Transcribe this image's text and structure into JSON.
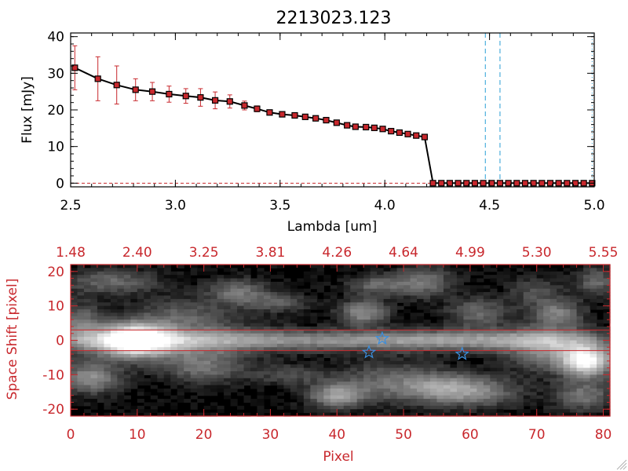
{
  "chart_data": [
    {
      "type": "line",
      "title": "2213023.123",
      "xlabel": "Lambda [um]",
      "ylabel": "Flux [mJy]",
      "xlim": [
        2.5,
        5.0
      ],
      "ylim": [
        -1,
        41
      ],
      "x_ticks": [
        "2.5",
        "3.0",
        "3.5",
        "4.0",
        "4.5",
        "5.0"
      ],
      "y_ticks": [
        "0",
        "10",
        "20",
        "30",
        "40"
      ],
      "line_color": "#000000",
      "marker_color": "#c8282d",
      "errorbar_color": "#c8282d",
      "dashed_lines_color": "#2a9fd6",
      "vertical_dashed_lines_x": [
        4.48,
        4.55
      ],
      "vertical_dotted_line_x": 4.99,
      "horizontal_dashed_line_y": 0,
      "x": [
        2.52,
        2.63,
        2.72,
        2.81,
        2.89,
        2.97,
        3.05,
        3.12,
        3.19,
        3.26,
        3.33,
        3.39,
        3.45,
        3.51,
        3.57,
        3.62,
        3.67,
        3.72,
        3.77,
        3.82,
        3.86,
        3.91,
        3.95,
        3.99,
        4.03,
        4.07,
        4.11,
        4.15,
        4.19,
        4.23,
        4.27,
        4.31,
        4.35,
        4.39,
        4.43,
        4.47,
        4.51,
        4.55,
        4.59,
        4.63,
        4.67,
        4.71,
        4.75,
        4.79,
        4.83,
        4.87,
        4.91,
        4.95,
        4.99
      ],
      "y": [
        31.5,
        28.5,
        26.8,
        25.5,
        25.0,
        24.3,
        23.8,
        23.4,
        22.6,
        22.3,
        21.2,
        20.3,
        19.3,
        18.8,
        18.5,
        18.1,
        17.7,
        17.2,
        16.5,
        15.8,
        15.4,
        15.3,
        15.1,
        14.8,
        14.2,
        13.8,
        13.4,
        13.0,
        12.6,
        0,
        0,
        0,
        0,
        0,
        0,
        0,
        0,
        0,
        0,
        0,
        0,
        0,
        0,
        0,
        0,
        0,
        0,
        0,
        0
      ],
      "yerr": [
        6.0,
        6.0,
        5.2,
        3.0,
        2.5,
        2.2,
        2.0,
        2.4,
        2.3,
        1.8,
        1.2,
        0.8,
        0.6,
        0.5,
        0.5,
        0.5,
        0.5,
        0.5,
        0.5,
        0.5,
        0.5,
        0.5,
        0.5,
        0.5,
        0.5,
        0.5,
        0.5,
        0.5,
        0.5,
        0.2,
        0.2,
        0.2,
        0.2,
        0.2,
        0.2,
        0.2,
        0.2,
        0.2,
        0.2,
        0.2,
        0.2,
        0.2,
        0.2,
        0.2,
        0.2,
        0.2,
        0.2,
        0.2,
        0.2
      ]
    },
    {
      "type": "heatmap",
      "xlabel": "Pixel",
      "ylabel": "Space Shift [pixel]",
      "xlim": [
        0,
        81
      ],
      "ylim": [
        -22,
        22
      ],
      "x_ticks": [
        "0",
        "10",
        "20",
        "30",
        "40",
        "50",
        "60",
        "70",
        "80"
      ],
      "y_ticks": [
        "-20",
        "-10",
        "0",
        "10",
        "20"
      ],
      "top_axis_ticks": [
        "1.48",
        "2.40",
        "3.25",
        "3.81",
        "4.26",
        "4.64",
        "4.99",
        "5.30",
        "5.55"
      ],
      "axis_color": "#c8282d",
      "horizontal_lines_y": [
        3,
        -3
      ],
      "star_markers": [
        {
          "x": 44.8,
          "y": -3.5
        },
        {
          "x": 46.8,
          "y": 0.5
        },
        {
          "x": 58.8,
          "y": -4.0
        }
      ],
      "star_color": "#3a8fe0",
      "blobs": [
        {
          "x": 9.5,
          "y": 0,
          "sx": 3.5,
          "sy": 3.0,
          "a": 1.0
        },
        {
          "x": 14,
          "y": 0,
          "sx": 9,
          "sy": 4.5,
          "a": 0.35
        },
        {
          "x": 30,
          "y": 0,
          "sx": 30,
          "sy": 2.0,
          "a": 0.42
        },
        {
          "x": 60,
          "y": 0,
          "sx": 12,
          "sy": 2.0,
          "a": 0.28
        },
        {
          "x": 77.5,
          "y": -6,
          "sx": 2.5,
          "sy": 3.0,
          "a": 0.95
        },
        {
          "x": 72,
          "y": -2,
          "sx": 4.5,
          "sy": 4.5,
          "a": 0.45
        },
        {
          "x": 3,
          "y": -11,
          "sx": 3,
          "sy": 3,
          "a": 0.45
        },
        {
          "x": 1.5,
          "y": 5,
          "sx": 2,
          "sy": 4,
          "a": 0.3
        },
        {
          "x": 6,
          "y": 17,
          "sx": 5,
          "sy": 2.5,
          "a": 0.3
        },
        {
          "x": 25,
          "y": 14,
          "sx": 3,
          "sy": 2.5,
          "a": 0.35
        },
        {
          "x": 44,
          "y": 8,
          "sx": 2.5,
          "sy": 2.5,
          "a": 0.45
        },
        {
          "x": 46,
          "y": 16,
          "sx": 3,
          "sy": 2,
          "a": 0.3
        },
        {
          "x": 31,
          "y": 11,
          "sx": 3,
          "sy": 2,
          "a": 0.25
        },
        {
          "x": 53,
          "y": 17,
          "sx": 3,
          "sy": 3,
          "a": 0.35
        },
        {
          "x": 48,
          "y": -12,
          "sx": 5,
          "sy": 4,
          "a": 0.3
        },
        {
          "x": 56,
          "y": -14,
          "sx": 4,
          "sy": 3,
          "a": 0.45
        },
        {
          "x": 40,
          "y": -16,
          "sx": 3,
          "sy": 2.5,
          "a": 0.5
        },
        {
          "x": 20,
          "y": -8,
          "sx": 4,
          "sy": 3,
          "a": 0.3
        },
        {
          "x": 33,
          "y": -10,
          "sx": 4,
          "sy": 2,
          "a": 0.2
        },
        {
          "x": 61,
          "y": 8,
          "sx": 3,
          "sy": 3,
          "a": 0.3
        },
        {
          "x": 62,
          "y": -15,
          "sx": 4,
          "sy": 3,
          "a": 0.3
        },
        {
          "x": 70,
          "y": 14,
          "sx": 3,
          "sy": 3,
          "a": 0.2
        },
        {
          "x": 73,
          "y": 8,
          "sx": 2.5,
          "sy": 2.5,
          "a": 0.35
        },
        {
          "x": 77,
          "y": -16,
          "sx": 3,
          "sy": 3,
          "a": 0.35
        },
        {
          "x": 79,
          "y": 17,
          "sx": 2,
          "sy": 3,
          "a": 0.3
        },
        {
          "x": 17,
          "y": 8,
          "sx": 5,
          "sy": 3,
          "a": 0.2
        }
      ]
    }
  ]
}
